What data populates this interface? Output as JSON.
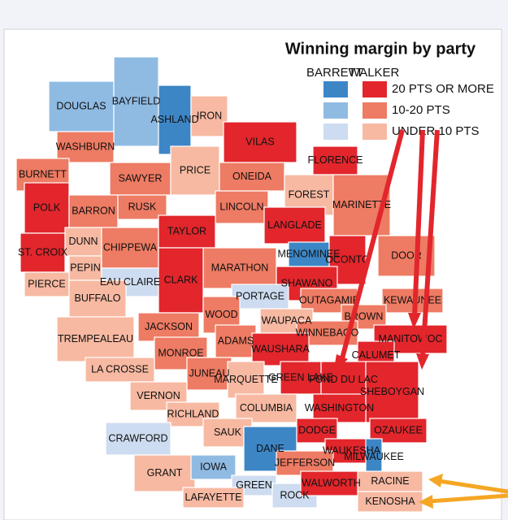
{
  "legend": {
    "title": "Winning margin by party",
    "parties": [
      {
        "name": "BARRETT",
        "colors": [
          "#3d86c6",
          "#8fbbe3",
          "#cddcf0"
        ]
      },
      {
        "name": "WALKER",
        "colors": [
          "#e2262c",
          "#ee7b63",
          "#f7b9a2"
        ]
      }
    ],
    "levels": [
      "20 PTS OR MORE",
      "10-20 PTS",
      "UNDER 10 PTS"
    ]
  },
  "counties": [
    {
      "name": "DOUGLAS",
      "party": 0,
      "level": 1
    },
    {
      "name": "BAYFIELD",
      "party": 0,
      "level": 1
    },
    {
      "name": "ASHLAND",
      "party": 0,
      "level": 0
    },
    {
      "name": "IRON",
      "party": 1,
      "level": 2
    },
    {
      "name": "VILAS",
      "party": 1,
      "level": 0
    },
    {
      "name": "FLORENCE",
      "party": 1,
      "level": 0
    },
    {
      "name": "WASHBURN",
      "party": 1,
      "level": 1
    },
    {
      "name": "BURNETT",
      "party": 1,
      "level": 1
    },
    {
      "name": "SAWYER",
      "party": 1,
      "level": 1
    },
    {
      "name": "PRICE",
      "party": 1,
      "level": 2
    },
    {
      "name": "ONEIDA",
      "party": 1,
      "level": 1
    },
    {
      "name": "FOREST",
      "party": 1,
      "level": 2
    },
    {
      "name": "MARINETTE",
      "party": 1,
      "level": 1
    },
    {
      "name": "POLK",
      "party": 1,
      "level": 0
    },
    {
      "name": "BARRON",
      "party": 1,
      "level": 1
    },
    {
      "name": "RUSK",
      "party": 1,
      "level": 1
    },
    {
      "name": "LINCOLN",
      "party": 1,
      "level": 1
    },
    {
      "name": "LANGLADE",
      "party": 1,
      "level": 0
    },
    {
      "name": "ST. CROIX",
      "party": 1,
      "level": 0
    },
    {
      "name": "DUNN",
      "party": 1,
      "level": 2
    },
    {
      "name": "CHIPPEWA",
      "party": 1,
      "level": 1
    },
    {
      "name": "TAYLOR",
      "party": 1,
      "level": 0
    },
    {
      "name": "MARATHON",
      "party": 1,
      "level": 1
    },
    {
      "name": "MENOMINEE",
      "party": 0,
      "level": 0
    },
    {
      "name": "OCONTO",
      "party": 1,
      "level": 0
    },
    {
      "name": "SHAWANO",
      "party": 1,
      "level": 0
    },
    {
      "name": "DOOR",
      "party": 1,
      "level": 1
    },
    {
      "name": "PIERCE",
      "party": 1,
      "level": 2
    },
    {
      "name": "PEPIN",
      "party": 1,
      "level": 2
    },
    {
      "name": "EAU CLAIRE",
      "party": 0,
      "level": 2
    },
    {
      "name": "CLARK",
      "party": 1,
      "level": 0
    },
    {
      "name": "BUFFALO",
      "party": 1,
      "level": 2
    },
    {
      "name": "PORTAGE",
      "party": 0,
      "level": 2
    },
    {
      "name": "WOOD",
      "party": 1,
      "level": 1
    },
    {
      "name": "KEWAUNEE",
      "party": 1,
      "level": 1
    },
    {
      "name": "OUTAGAMIE",
      "party": 1,
      "level": 1
    },
    {
      "name": "WAUPACA",
      "party": 1,
      "level": 2
    },
    {
      "name": "BROWN",
      "party": 1,
      "level": 1
    },
    {
      "name": "TREMPEALEAU",
      "party": 1,
      "level": 2
    },
    {
      "name": "JACKSON",
      "party": 1,
      "level": 1
    },
    {
      "name": "ADAMS",
      "party": 1,
      "level": 1
    },
    {
      "name": "WINNEBAGO",
      "party": 1,
      "level": 1
    },
    {
      "name": "MANITOWOC",
      "party": 1,
      "level": 0
    },
    {
      "name": "MONROE",
      "party": 1,
      "level": 1
    },
    {
      "name": "WAUSHARA",
      "party": 1,
      "level": 0
    },
    {
      "name": "CALUMET",
      "party": 1,
      "level": 0
    },
    {
      "name": "LA CROSSE",
      "party": 1,
      "level": 2
    },
    {
      "name": "JUNEAU",
      "party": 1,
      "level": 1
    },
    {
      "name": "MARQUETTE",
      "party": 1,
      "level": 2
    },
    {
      "name": "GREEN LAKE",
      "party": 1,
      "level": 0
    },
    {
      "name": "FOND DU LAC",
      "party": 1,
      "level": 0
    },
    {
      "name": "SHEBOYGAN",
      "party": 1,
      "level": 0
    },
    {
      "name": "VERNON",
      "party": 1,
      "level": 2
    },
    {
      "name": "RICHLAND",
      "party": 1,
      "level": 2
    },
    {
      "name": "COLUMBIA",
      "party": 1,
      "level": 2
    },
    {
      "name": "WASHINGTON",
      "party": 1,
      "level": 0
    },
    {
      "name": "CRAWFORD",
      "party": 0,
      "level": 2
    },
    {
      "name": "SAUK",
      "party": 1,
      "level": 2
    },
    {
      "name": "DODGE",
      "party": 1,
      "level": 0
    },
    {
      "name": "OZAUKEE",
      "party": 1,
      "level": 0
    },
    {
      "name": "DANE",
      "party": 0,
      "level": 0
    },
    {
      "name": "WAUKESHA",
      "party": 1,
      "level": 0
    },
    {
      "name": "MILWAUKEE",
      "party": 0,
      "level": 0
    },
    {
      "name": "GRANT",
      "party": 1,
      "level": 2
    },
    {
      "name": "IOWA",
      "party": 0,
      "level": 1
    },
    {
      "name": "JEFFERSON",
      "party": 1,
      "level": 1
    },
    {
      "name": "GREEN",
      "party": 0,
      "level": 2
    },
    {
      "name": "ROCK",
      "party": 0,
      "level": 2
    },
    {
      "name": "WALWORTH",
      "party": 1,
      "level": 0
    },
    {
      "name": "LAFAYETTE",
      "party": 1,
      "level": 2
    },
    {
      "name": "RACINE",
      "party": 1,
      "level": 2
    },
    {
      "name": "KENOSHA",
      "party": 1,
      "level": 2
    }
  ]
}
